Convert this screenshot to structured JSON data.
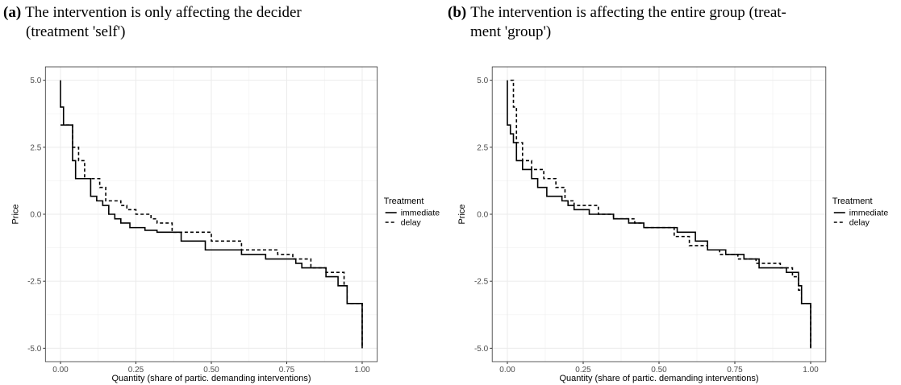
{
  "chart_data": [
    {
      "type": "step",
      "panel_label": "(a)",
      "caption": [
        "The intervention is only affecting the decider",
        "(treatment 'self')"
      ],
      "x_label": "Quantity (share of partic. demanding interventions)",
      "y_label": "Price",
      "legend_title": "Treatment",
      "grid": true,
      "xlim": [
        -0.05,
        1.05
      ],
      "ylim": [
        -5.5,
        5.5
      ],
      "xticks": [
        {
          "value": 0,
          "label": "0.00"
        },
        {
          "value": 0.25,
          "label": "0.25"
        },
        {
          "value": 0.5,
          "label": "0.50"
        },
        {
          "value": 0.75,
          "label": "0.75"
        },
        {
          "value": 1,
          "label": "1.00"
        }
      ],
      "yticks": [
        {
          "value": -5,
          "label": "-5.0"
        },
        {
          "value": -2.5,
          "label": "-2.5"
        },
        {
          "value": 0,
          "label": "0.0"
        },
        {
          "value": 2.5,
          "label": "2.5"
        },
        {
          "value": 5,
          "label": "5.0"
        }
      ],
      "series": [
        {
          "name": "immediate",
          "color": "#000000",
          "dash": "none",
          "x": [
            0,
            0,
            0.01,
            0.04,
            0.05,
            0.1,
            0.12,
            0.14,
            0.16,
            0.18,
            0.2,
            0.23,
            0.28,
            0.32,
            0.4,
            0.48,
            0.6,
            0.68,
            0.78,
            0.8,
            0.88,
            0.92,
            0.95,
            1,
            1
          ],
          "values": [
            5,
            4,
            3.33,
            2,
            1.33,
            0.67,
            0.5,
            0.33,
            0,
            -0.17,
            -0.33,
            -0.5,
            -0.6,
            -0.67,
            -1,
            -1.33,
            -1.5,
            -1.67,
            -1.83,
            -2,
            -2.33,
            -2.67,
            -3.33,
            -3.33,
            -5
          ]
        },
        {
          "name": "delay",
          "color": "#000000",
          "dash": "4,3",
          "x": [
            0,
            0.04,
            0.06,
            0.08,
            0.13,
            0.15,
            0.2,
            0.22,
            0.25,
            0.3,
            0.32,
            0.37,
            0.5,
            0.6,
            0.72,
            0.77,
            0.83,
            0.88,
            0.94,
            0.95,
            1,
            1
          ],
          "values": [
            3.33,
            2.5,
            2,
            1.33,
            1,
            0.5,
            0.33,
            0.17,
            0,
            -0.17,
            -0.33,
            -0.67,
            -1,
            -1.33,
            -1.5,
            -1.67,
            -2,
            -2.17,
            -2.67,
            -3.33,
            -3.33,
            -5
          ]
        }
      ]
    },
    {
      "type": "step",
      "panel_label": "(b)",
      "caption": [
        "The intervention is affecting the entire group (treat-",
        "ment 'group')"
      ],
      "x_label": "Quantity (share of partic. demanding interventions)",
      "y_label": "Price",
      "legend_title": "Treatment",
      "grid": true,
      "xlim": [
        -0.05,
        1.05
      ],
      "ylim": [
        -5.5,
        5.5
      ],
      "xticks": [
        {
          "value": 0,
          "label": "0.00"
        },
        {
          "value": 0.25,
          "label": "0.25"
        },
        {
          "value": 0.5,
          "label": "0.50"
        },
        {
          "value": 0.75,
          "label": "0.75"
        },
        {
          "value": 1,
          "label": "1.00"
        }
      ],
      "yticks": [
        {
          "value": -5,
          "label": "-5.0"
        },
        {
          "value": -2.5,
          "label": "-2.5"
        },
        {
          "value": 0,
          "label": "0.0"
        },
        {
          "value": 2.5,
          "label": "2.5"
        },
        {
          "value": 5,
          "label": "5.0"
        }
      ],
      "series": [
        {
          "name": "immediate",
          "color": "#000000",
          "dash": "none",
          "x": [
            0,
            0,
            0,
            0.01,
            0.02,
            0.03,
            0.05,
            0.08,
            0.1,
            0.13,
            0.18,
            0.2,
            0.22,
            0.27,
            0.35,
            0.4,
            0.45,
            0.56,
            0.62,
            0.66,
            0.72,
            0.78,
            0.83,
            0.92,
            0.96,
            0.97,
            1,
            1
          ],
          "values": [
            5,
            4,
            3.33,
            3,
            2.67,
            2,
            1.67,
            1.33,
            1,
            0.67,
            0.5,
            0.33,
            0.17,
            0,
            -0.17,
            -0.33,
            -0.5,
            -0.67,
            -1,
            -1.33,
            -1.5,
            -1.67,
            -2,
            -2.17,
            -2.67,
            -3.33,
            -3.33,
            -5
          ]
        },
        {
          "name": "delay",
          "color": "#000000",
          "dash": "4,3",
          "x": [
            0.01,
            0.02,
            0.03,
            0.05,
            0.08,
            0.12,
            0.16,
            0.19,
            0.22,
            0.3,
            0.35,
            0.42,
            0.45,
            0.55,
            0.6,
            0.66,
            0.7,
            0.76,
            0.82,
            0.9,
            0.94,
            0.96,
            0.97,
            1,
            1
          ],
          "values": [
            5,
            4,
            2.67,
            2,
            1.67,
            1.33,
            1,
            0.5,
            0.33,
            0,
            -0.17,
            -0.33,
            -0.5,
            -0.83,
            -1.17,
            -1.33,
            -1.5,
            -1.67,
            -1.83,
            -2,
            -2.33,
            -2.83,
            -3.33,
            -3.33,
            -5
          ]
        }
      ]
    }
  ]
}
